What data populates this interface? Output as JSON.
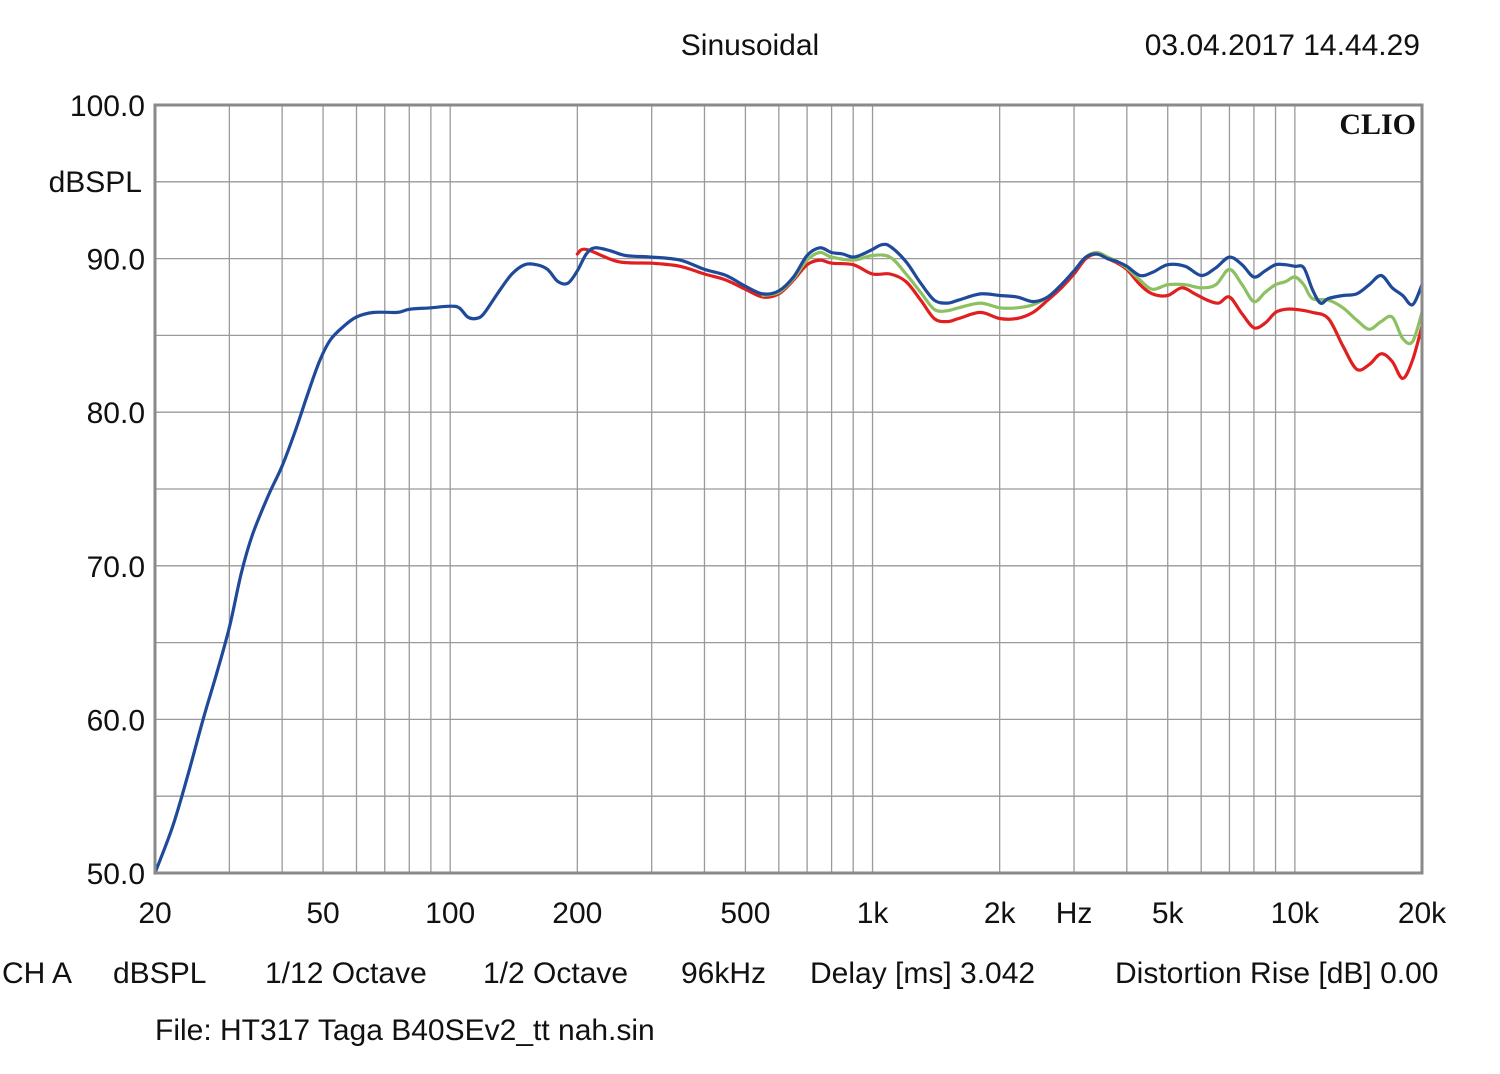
{
  "header": {
    "mode": "Sinusoidal",
    "timestamp": "03.04.2017 14.44.29"
  },
  "brand": "CLIO",
  "footer": {
    "channel": "CH A",
    "unit": "dBSPL",
    "smoothing": "1/12 Octave",
    "resolution": "1/2 Octave",
    "sample_rate": "96kHz",
    "delay": "Delay [ms] 3.042",
    "distortion": "Distortion Rise [dB] 0.00",
    "file": "File: HT317 Taga B40SEv2_tt nah.sin"
  },
  "chart_data": {
    "type": "line",
    "ylabel": "dBSPL",
    "xlabel": "Hz",
    "x_scale": "log",
    "xlim": [
      20,
      20000
    ],
    "ylim": [
      50,
      100
    ],
    "grid": true,
    "y_ticks": [
      "100.0",
      "90.0",
      "80.0",
      "70.0",
      "60.0",
      "50.0"
    ],
    "y_tick_values": [
      100,
      90,
      80,
      70,
      60,
      50
    ],
    "x_ticks": [
      {
        "label": "20",
        "value": 20
      },
      {
        "label": "50",
        "value": 50
      },
      {
        "label": "100",
        "value": 100
      },
      {
        "label": "200",
        "value": 200
      },
      {
        "label": "500",
        "value": 500
      },
      {
        "label": "1k",
        "value": 1000
      },
      {
        "label": "2k",
        "value": 2000
      },
      {
        "label": "Hz",
        "value": 3000
      },
      {
        "label": "5k",
        "value": 5000
      },
      {
        "label": "10k",
        "value": 10000
      },
      {
        "label": "20k",
        "value": 20000
      }
    ],
    "series": [
      {
        "color": "#e02020",
        "points": [
          [
            200,
            90.3
          ],
          [
            210,
            90.6
          ],
          [
            250,
            89.8
          ],
          [
            300,
            89.7
          ],
          [
            350,
            89.5
          ],
          [
            400,
            89.0
          ],
          [
            450,
            88.6
          ],
          [
            500,
            88.0
          ],
          [
            550,
            87.5
          ],
          [
            600,
            87.7
          ],
          [
            650,
            88.6
          ],
          [
            700,
            89.6
          ],
          [
            750,
            89.9
          ],
          [
            800,
            89.7
          ],
          [
            900,
            89.6
          ],
          [
            1000,
            89.0
          ],
          [
            1100,
            89.0
          ],
          [
            1200,
            88.5
          ],
          [
            1300,
            87.3
          ],
          [
            1400,
            86.1
          ],
          [
            1500,
            85.9
          ],
          [
            1600,
            86.1
          ],
          [
            1800,
            86.5
          ],
          [
            2000,
            86.1
          ],
          [
            2200,
            86.1
          ],
          [
            2400,
            86.5
          ],
          [
            2600,
            87.3
          ],
          [
            2800,
            88.1
          ],
          [
            3000,
            89.0
          ],
          [
            3200,
            90.0
          ],
          [
            3400,
            90.3
          ],
          [
            3600,
            90.0
          ],
          [
            3800,
            89.7
          ],
          [
            4000,
            89.3
          ],
          [
            4300,
            88.3
          ],
          [
            4600,
            87.7
          ],
          [
            5000,
            87.6
          ],
          [
            5400,
            88.1
          ],
          [
            5800,
            87.7
          ],
          [
            6200,
            87.3
          ],
          [
            6600,
            87.1
          ],
          [
            7000,
            87.5
          ],
          [
            7500,
            86.4
          ],
          [
            8000,
            85.5
          ],
          [
            8500,
            85.8
          ],
          [
            9000,
            86.5
          ],
          [
            9500,
            86.7
          ],
          [
            10000,
            86.7
          ],
          [
            11000,
            86.5
          ],
          [
            12000,
            86.1
          ],
          [
            13000,
            84.3
          ],
          [
            14000,
            82.8
          ],
          [
            15000,
            83.1
          ],
          [
            16000,
            83.8
          ],
          [
            17000,
            83.3
          ],
          [
            18000,
            82.2
          ],
          [
            19000,
            83.4
          ],
          [
            20000,
            85.6
          ]
        ]
      },
      {
        "color": "#8cc060",
        "points": [
          [
            550,
            87.6
          ],
          [
            600,
            87.8
          ],
          [
            650,
            88.7
          ],
          [
            700,
            89.9
          ],
          [
            750,
            90.4
          ],
          [
            800,
            90.1
          ],
          [
            900,
            89.9
          ],
          [
            1000,
            90.2
          ],
          [
            1100,
            90.1
          ],
          [
            1200,
            89.0
          ],
          [
            1300,
            87.8
          ],
          [
            1400,
            86.7
          ],
          [
            1500,
            86.6
          ],
          [
            1600,
            86.8
          ],
          [
            1800,
            87.1
          ],
          [
            2000,
            86.8
          ],
          [
            2200,
            86.8
          ],
          [
            2400,
            87.0
          ],
          [
            2600,
            87.5
          ],
          [
            2800,
            88.3
          ],
          [
            3000,
            89.2
          ],
          [
            3200,
            90.1
          ],
          [
            3400,
            90.4
          ],
          [
            3600,
            90.1
          ],
          [
            3800,
            89.8
          ],
          [
            4000,
            89.4
          ],
          [
            4300,
            88.6
          ],
          [
            4600,
            88.0
          ],
          [
            5000,
            88.3
          ],
          [
            5500,
            88.3
          ],
          [
            6000,
            88.1
          ],
          [
            6500,
            88.3
          ],
          [
            7000,
            89.3
          ],
          [
            7500,
            88.3
          ],
          [
            8000,
            87.2
          ],
          [
            8500,
            87.8
          ],
          [
            9000,
            88.3
          ],
          [
            9500,
            88.5
          ],
          [
            10000,
            88.8
          ],
          [
            10500,
            88.3
          ],
          [
            11000,
            87.4
          ],
          [
            12000,
            87.3
          ],
          [
            13000,
            86.8
          ],
          [
            14000,
            86.0
          ],
          [
            15000,
            85.4
          ],
          [
            16000,
            85.9
          ],
          [
            17000,
            86.2
          ],
          [
            18000,
            84.8
          ],
          [
            19000,
            84.6
          ],
          [
            20000,
            86.5
          ]
        ]
      },
      {
        "color": "#1f4a9a",
        "points": [
          [
            20,
            50.0
          ],
          [
            22,
            53.0
          ],
          [
            24,
            56.5
          ],
          [
            26,
            60.0
          ],
          [
            28,
            63.0
          ],
          [
            30,
            66.0
          ],
          [
            32,
            69.5
          ],
          [
            34,
            72.0
          ],
          [
            37,
            74.5
          ],
          [
            40,
            76.5
          ],
          [
            43,
            78.8
          ],
          [
            46,
            81.2
          ],
          [
            49,
            83.3
          ],
          [
            52,
            84.7
          ],
          [
            56,
            85.6
          ],
          [
            60,
            86.2
          ],
          [
            66,
            86.5
          ],
          [
            75,
            86.5
          ],
          [
            80,
            86.7
          ],
          [
            90,
            86.8
          ],
          [
            100,
            86.9
          ],
          [
            105,
            86.8
          ],
          [
            110,
            86.2
          ],
          [
            115,
            86.1
          ],
          [
            120,
            86.4
          ],
          [
            130,
            87.8
          ],
          [
            140,
            89.0
          ],
          [
            150,
            89.6
          ],
          [
            160,
            89.6
          ],
          [
            170,
            89.3
          ],
          [
            180,
            88.5
          ],
          [
            190,
            88.4
          ],
          [
            200,
            89.2
          ],
          [
            210,
            90.3
          ],
          [
            220,
            90.7
          ],
          [
            240,
            90.5
          ],
          [
            260,
            90.2
          ],
          [
            300,
            90.1
          ],
          [
            350,
            89.9
          ],
          [
            400,
            89.3
          ],
          [
            450,
            88.9
          ],
          [
            500,
            88.2
          ],
          [
            550,
            87.7
          ],
          [
            600,
            87.9
          ],
          [
            650,
            88.8
          ],
          [
            700,
            90.2
          ],
          [
            750,
            90.7
          ],
          [
            800,
            90.4
          ],
          [
            850,
            90.3
          ],
          [
            900,
            90.1
          ],
          [
            950,
            90.3
          ],
          [
            1000,
            90.6
          ],
          [
            1050,
            90.9
          ],
          [
            1100,
            90.8
          ],
          [
            1200,
            89.8
          ],
          [
            1300,
            88.4
          ],
          [
            1400,
            87.3
          ],
          [
            1500,
            87.1
          ],
          [
            1600,
            87.3
          ],
          [
            1800,
            87.7
          ],
          [
            2000,
            87.6
          ],
          [
            2200,
            87.5
          ],
          [
            2400,
            87.2
          ],
          [
            2600,
            87.5
          ],
          [
            2800,
            88.3
          ],
          [
            3000,
            89.2
          ],
          [
            3200,
            90.1
          ],
          [
            3400,
            90.3
          ],
          [
            3600,
            90.0
          ],
          [
            3800,
            89.8
          ],
          [
            4000,
            89.5
          ],
          [
            4300,
            88.9
          ],
          [
            4600,
            89.1
          ],
          [
            5000,
            89.6
          ],
          [
            5500,
            89.5
          ],
          [
            6000,
            88.9
          ],
          [
            6500,
            89.4
          ],
          [
            7000,
            90.1
          ],
          [
            7500,
            89.6
          ],
          [
            8000,
            88.8
          ],
          [
            8500,
            89.2
          ],
          [
            9000,
            89.6
          ],
          [
            9500,
            89.6
          ],
          [
            10000,
            89.5
          ],
          [
            10500,
            89.4
          ],
          [
            11000,
            88.0
          ],
          [
            11500,
            87.1
          ],
          [
            12000,
            87.4
          ],
          [
            13000,
            87.6
          ],
          [
            14000,
            87.7
          ],
          [
            15000,
            88.3
          ],
          [
            16000,
            88.9
          ],
          [
            17000,
            88.1
          ],
          [
            18000,
            87.6
          ],
          [
            19000,
            87.0
          ],
          [
            20000,
            88.3
          ]
        ]
      }
    ]
  }
}
